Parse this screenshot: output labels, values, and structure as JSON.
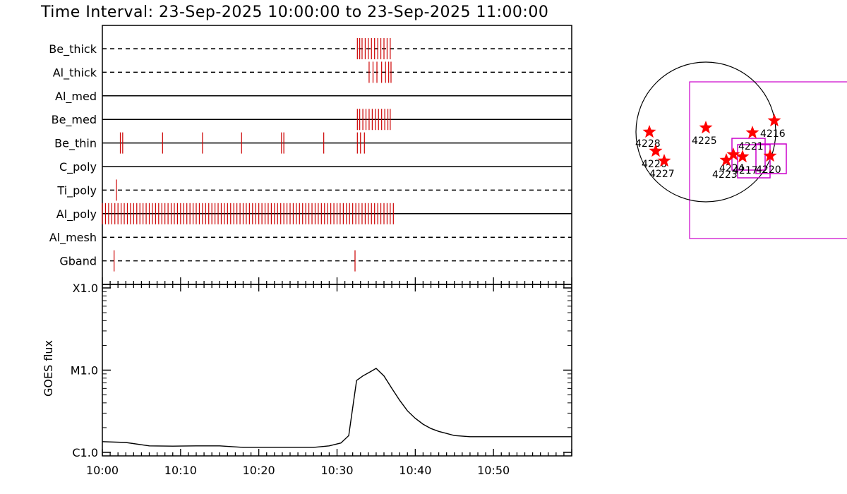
{
  "chart_data": {
    "type": "line",
    "title": "Time Interval: 23-Sep-2025 10:00:00 to 23-Sep-2025 11:00:00",
    "x_axis": {
      "unit": "minutes",
      "range": [
        0,
        60
      ],
      "ticks": [
        0,
        10,
        20,
        30,
        40,
        50
      ],
      "tick_labels": [
        "10:00",
        "10:10",
        "10:20",
        "10:30",
        "10:40",
        "10:50"
      ]
    },
    "filter_channels": [
      {
        "name": "Be_thick",
        "style": "dashed",
        "events": [
          32.6,
          32.9,
          33.2,
          33.6,
          34.0,
          34.4,
          34.8,
          35.2,
          35.6,
          36.0,
          36.4,
          36.8
        ]
      },
      {
        "name": "Al_thick",
        "style": "dashed",
        "events": [
          34.1,
          34.6,
          35.1,
          35.7,
          36.2,
          36.6,
          36.9
        ]
      },
      {
        "name": "Al_med",
        "style": "solid",
        "events": []
      },
      {
        "name": "Be_med",
        "style": "solid",
        "events": [
          32.6,
          32.9,
          33.3,
          33.7,
          34.1,
          34.5,
          34.9,
          35.3,
          35.7,
          36.1,
          36.5,
          36.8
        ]
      },
      {
        "name": "Be_thin",
        "style": "solid",
        "events": [
          2.3,
          2.6,
          7.7,
          12.8,
          17.8,
          22.9,
          23.2,
          28.3,
          32.6,
          33.0,
          33.5
        ]
      },
      {
        "name": "C_poly",
        "style": "solid",
        "events": []
      },
      {
        "name": "Ti_poly",
        "style": "dashed",
        "events": [
          1.8
        ]
      },
      {
        "name": "Al_poly",
        "style": "solid",
        "events": [
          0.0,
          0.4,
          0.8,
          1.2,
          1.6,
          2.0,
          2.4,
          2.8,
          3.2,
          3.6,
          4.0,
          4.4,
          4.8,
          5.2,
          5.6,
          6.0,
          6.4,
          6.8,
          7.2,
          7.6,
          8.0,
          8.4,
          8.8,
          9.2,
          9.6,
          10.0,
          10.4,
          10.8,
          11.2,
          11.6,
          12.0,
          12.4,
          12.8,
          13.2,
          13.6,
          14.0,
          14.4,
          14.8,
          15.2,
          15.6,
          16.0,
          16.4,
          16.8,
          17.2,
          17.6,
          18.0,
          18.4,
          18.8,
          19.2,
          19.6,
          20.0,
          20.4,
          20.8,
          21.2,
          21.6,
          22.0,
          22.4,
          22.8,
          23.2,
          23.6,
          24.0,
          24.4,
          24.8,
          25.2,
          25.6,
          26.0,
          26.4,
          26.8,
          27.2,
          27.6,
          28.0,
          28.4,
          28.8,
          29.2,
          29.6,
          30.0,
          30.4,
          30.8,
          31.2,
          31.6,
          32.0,
          32.4,
          32.8,
          33.2,
          33.6,
          34.0,
          34.4,
          34.8,
          35.2,
          35.6,
          36.0,
          36.4,
          36.8,
          37.2
        ]
      },
      {
        "name": "Al_mesh",
        "style": "dashed",
        "events": []
      },
      {
        "name": "Gband",
        "style": "dashed",
        "events": [
          1.5,
          32.3
        ]
      }
    ],
    "goes": {
      "ylabel": "GOES flux",
      "scale": "log",
      "y_ticks": [
        {
          "label": "X1.0",
          "value": 0.0001
        },
        {
          "label": "M1.0",
          "value": 1e-05
        },
        {
          "label": "C1.0",
          "value": 1e-06
        }
      ],
      "series": [
        {
          "x": [
            0,
            3,
            6,
            9,
            12,
            15,
            18,
            21,
            24,
            27,
            29,
            30.5,
            31.5,
            32.0,
            32.5,
            33.3,
            34.2,
            35.0,
            36.0,
            37.0,
            38.0,
            39.0,
            40.0,
            41.0,
            42.0,
            43.0,
            44.0,
            45.0,
            47.0,
            50.0,
            53.0,
            56.0,
            60.0
          ],
          "y": [
            1.35e-06,
            1.32e-06,
            1.2e-06,
            1.19e-06,
            1.2e-06,
            1.2e-06,
            1.15e-06,
            1.15e-06,
            1.15e-06,
            1.15e-06,
            1.2e-06,
            1.3e-06,
            1.6e-06,
            3.5e-06,
            7.5e-06,
            8.5e-06,
            9.5e-06,
            1.05e-05,
            8.5e-06,
            6e-06,
            4.3e-06,
            3.2e-06,
            2.6e-06,
            2.2e-06,
            1.95e-06,
            1.8e-06,
            1.7e-06,
            1.6e-06,
            1.55e-06,
            1.55e-06,
            1.55e-06,
            1.55e-06,
            1.55e-06
          ]
        }
      ]
    },
    "solar_map": {
      "regions": [
        {
          "label": "4228"
        },
        {
          "label": "4226"
        },
        {
          "label": "4227"
        },
        {
          "label": "4225"
        },
        {
          "label": "4216"
        },
        {
          "label": "4221"
        },
        {
          "label": "4224"
        },
        {
          "label": "4223"
        },
        {
          "label": "4217"
        },
        {
          "label": "4220"
        }
      ],
      "colors": {
        "stars": "#ff0000",
        "boxes": "#cc00cc",
        "disk": "#000000"
      }
    },
    "colors": {
      "events": "#cc0000",
      "lines": "#000000"
    }
  }
}
